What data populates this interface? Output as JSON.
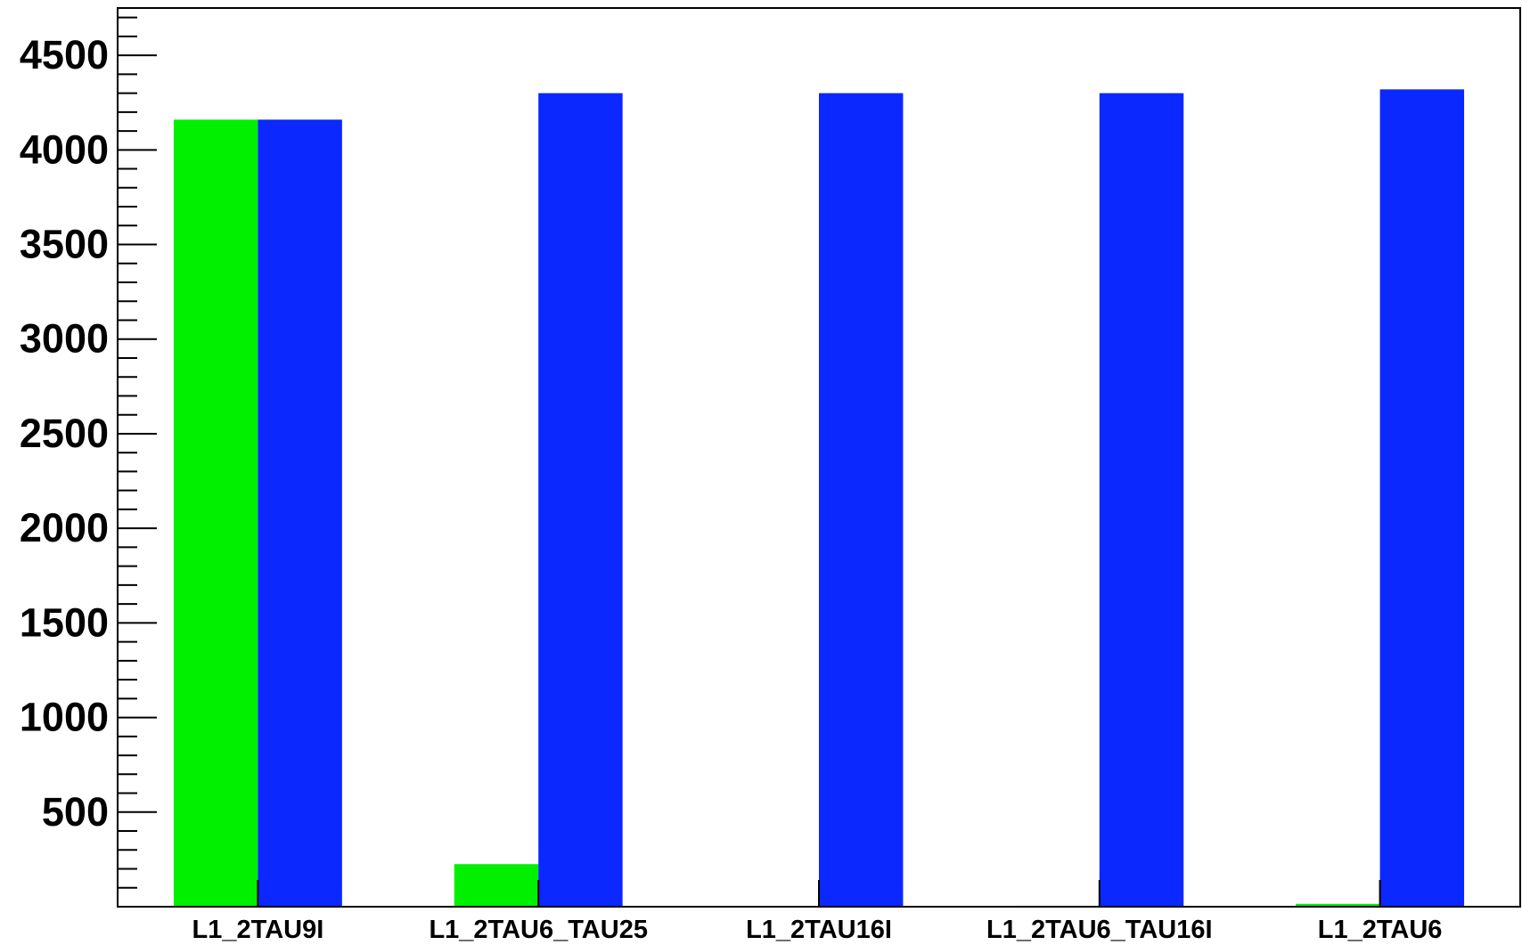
{
  "chart_data": {
    "type": "bar",
    "title": "",
    "xlabel": "",
    "ylabel": "",
    "ylim": [
      0,
      4750
    ],
    "y_major_ticks": [
      500,
      1000,
      1500,
      2000,
      2500,
      3000,
      3500,
      4000,
      4500
    ],
    "y_tick_labels": [
      "500",
      "1000",
      "1500",
      "2000",
      "2500",
      "3000",
      "3500",
      "4000",
      "4500"
    ],
    "y_minor_step": 100,
    "grid": false,
    "legend": "none",
    "categories": [
      "L1_2TAU9I",
      "L1_2TAU6_TAU25",
      "L1_2TAU16I",
      "L1_2TAU6_TAU16I",
      "L1_2TAU6"
    ],
    "series": [
      {
        "color": "#00f000",
        "values": [
          4160,
          225,
          0,
          5,
          15
        ]
      },
      {
        "color": "#0a28ff",
        "values": [
          4160,
          4300,
          4300,
          4300,
          4320
        ]
      }
    ]
  }
}
